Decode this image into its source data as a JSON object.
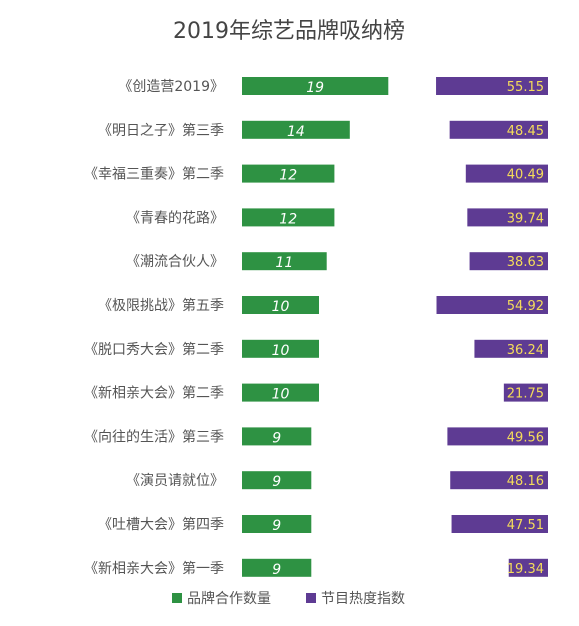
{
  "chart_data": {
    "type": "bar",
    "title": "2019年综艺品牌吸纳榜",
    "categories": [
      "《创造营2019》",
      "《明日之子》第三季",
      "《幸福三重奏》第二季",
      "《青春的花路》",
      "《潮流合伙人》",
      "《极限挑战》第五季",
      "《脱口秀大会》第二季",
      "《新相亲大会》第二季",
      "《向往的生活》第三季",
      "《演员请就位》",
      "《吐槽大会》第四季",
      "《新相亲大会》第一季"
    ],
    "series": [
      {
        "name": "品牌合作数量",
        "values": [
          19,
          14,
          12,
          12,
          11,
          10,
          10,
          10,
          9,
          9,
          9,
          9
        ]
      },
      {
        "name": "节目热度指数",
        "values": [
          55.15,
          48.45,
          40.49,
          39.74,
          38.63,
          54.92,
          36.24,
          21.75,
          49.56,
          48.16,
          47.51,
          19.34
        ]
      }
    ],
    "legend_position": "bottom",
    "grid": false
  },
  "colors": {
    "brand_bar": "#2e9243",
    "heat_bar": "#5e3b93",
    "brand_label": "#ffffff",
    "heat_label": "#f4dc5a",
    "category_text": "#555555",
    "title_text": "#444444"
  }
}
